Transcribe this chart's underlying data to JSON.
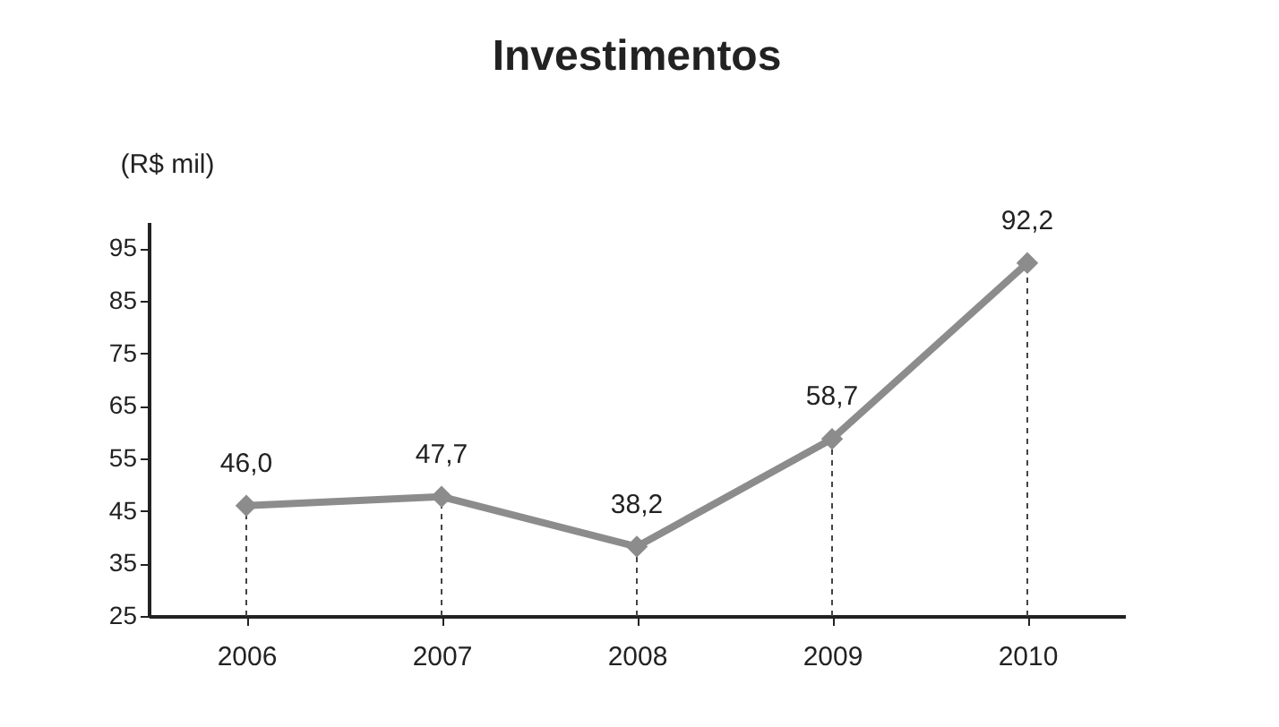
{
  "chart_data": {
    "type": "line",
    "title": "Investimentos",
    "ylabel": "(R$ mil)",
    "categories": [
      "2006",
      "2007",
      "2008",
      "2009",
      "2010"
    ],
    "series": [
      {
        "color": "#8c8c8c",
        "values": [
          46.0,
          47.7,
          38.2,
          58.7,
          92.2
        ],
        "value_labels": [
          "46,0",
          "47,7",
          "38,2",
          "58,7",
          "92,2"
        ]
      }
    ],
    "ylim": [
      25,
      100
    ],
    "yticks": [
      25,
      35,
      45,
      55,
      65,
      75,
      85,
      95
    ],
    "marker": "diamond",
    "line_style": "solid"
  }
}
